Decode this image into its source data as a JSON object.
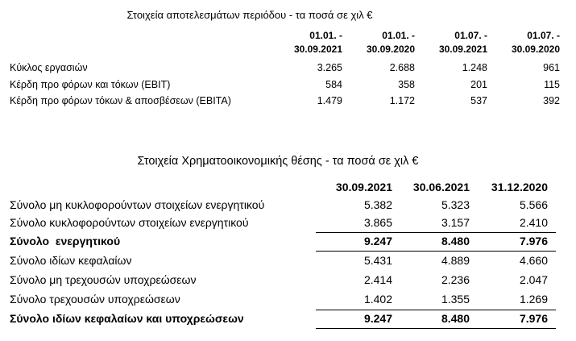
{
  "table1": {
    "title": "Στοιχεία αποτελεσμάτων περιόδου - τα ποσά σε χιλ €",
    "columns": [
      [
        "01.01. -",
        "30.09.2021"
      ],
      [
        "01.01. -",
        "30.09.2020"
      ],
      [
        "01.07. -",
        "30.09.2021"
      ],
      [
        "01.07. -",
        "30.09.2020"
      ]
    ],
    "rows": [
      {
        "label": "Κύκλος εργασιών",
        "values": [
          "3.265",
          "2.688",
          "1.248",
          "961"
        ]
      },
      {
        "label": "Κέρδη προ φόρων και τόκων (EBIT)",
        "values": [
          "584",
          "358",
          "201",
          "115"
        ]
      },
      {
        "label": "Κέρδη προ φόρων τόκων & αποσβέσεων (EBITA)",
        "values": [
          "1.479",
          "1.172",
          "537",
          "392"
        ]
      }
    ]
  },
  "table2": {
    "title": "Στοιχεία Χρηματοοικονομικής θέσης - τα ποσά σε χιλ €",
    "columns": [
      "30.09.2021",
      "30.06.2021",
      "31.12.2020"
    ],
    "rows": [
      {
        "label": "Σύνολο μη κυκλοφορούντων στοιχείων ενεργητικού",
        "values": [
          "5.382",
          "5.323",
          "5.566"
        ]
      },
      {
        "label": "Σύνολο κυκλοφορούντων στοιχείων ενεργητικού",
        "values": [
          "3.865",
          "3.157",
          "2.410"
        ]
      },
      {
        "label": "Σύνολο  ενεργητικού",
        "values": [
          "9.247",
          "8.480",
          "7.976"
        ],
        "bold": true
      },
      {
        "label": "Σύνολο ιδίων κεφαλαίων",
        "values": [
          "5.431",
          "4.889",
          "4.660"
        ]
      },
      {
        "label": "Σύνολο μη τρεχουσών υποχρεώσεων",
        "values": [
          "2.414",
          "2.236",
          "2.047"
        ]
      },
      {
        "label": "Σύνολο τρεχουσών υποχρεώσεων",
        "values": [
          "1.402",
          "1.355",
          "1.269"
        ]
      },
      {
        "label": "Σύνολο ιδίων κεφαλαίων και υποχρεώσεων",
        "values": [
          "9.247",
          "8.480",
          "7.976"
        ],
        "bold": true
      }
    ]
  }
}
